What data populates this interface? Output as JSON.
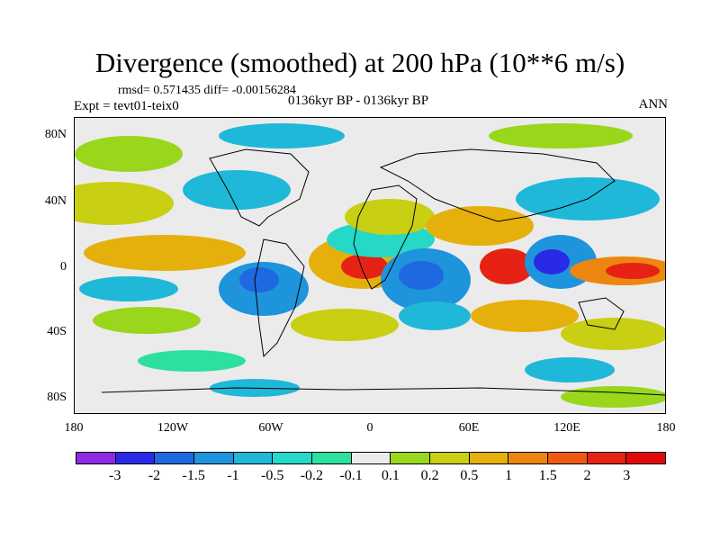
{
  "title": "Divergence (smoothed) at 200 hPa (10**6 m/s)",
  "stats_line": "rmsd= 0.571435 diff= -0.00156284",
  "experiment": "Expt = tevt01-teix0",
  "period": "0136kyr BP - 0136kyr BP",
  "season": "ANN",
  "lat_labels": [
    "80N",
    "40N",
    "0",
    "40S",
    "80S"
  ],
  "lon_labels": [
    "180",
    "120W",
    "60W",
    "0",
    "60E",
    "120E",
    "180"
  ],
  "colorbar": {
    "labels": [
      "-3",
      "-2",
      "-1.5",
      "-1",
      "-0.5",
      "-0.2",
      "-0.1",
      "0.1",
      "0.2",
      "0.5",
      "1",
      "1.5",
      "2",
      "3"
    ],
    "colors": [
      "#8c2be2",
      "#2a2ae6",
      "#1f68e0",
      "#1e94dc",
      "#1fb8d8",
      "#26d8c8",
      "#2de0a0",
      "#ebebeb",
      "#99d61c",
      "#c9cf12",
      "#e5b00c",
      "#ec8610",
      "#ef5a12",
      "#e62214",
      "#e00808"
    ]
  },
  "colors": {
    "neutral": "#ebebeb",
    "land_outline": "#000000"
  }
}
